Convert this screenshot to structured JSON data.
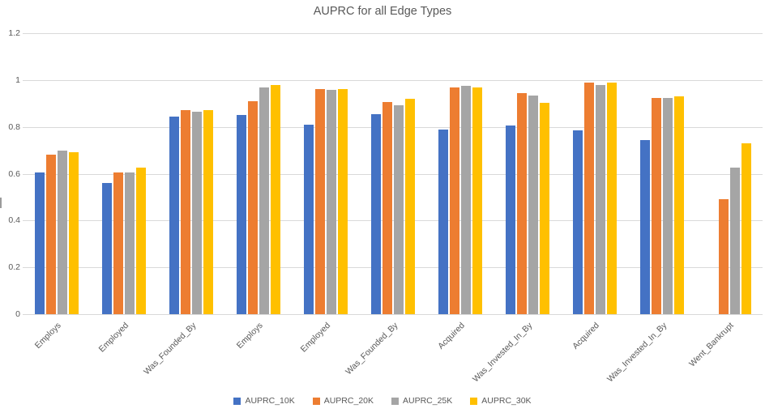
{
  "chart": {
    "title": "AUPRC for all Edge Types"
  },
  "chart_data": {
    "type": "bar",
    "title": "AUPRC for all Edge Types",
    "xlabel": "",
    "ylabel": "",
    "ylim": [
      0,
      1.2
    ],
    "grid": true,
    "legend_position": "bottom",
    "yticks": [
      0,
      0.2,
      0.4,
      0.6,
      0.8,
      1.0,
      1.2
    ],
    "ytick_labels": [
      "0",
      "0.2",
      "0.4",
      "0.6",
      "0.8",
      "1",
      "1.2"
    ],
    "categories": [
      "Employs",
      "Employed",
      "Was_Founded_By",
      "Employs",
      "Employed",
      "Was_Founded_By",
      "Acquired",
      "Was_Invested_In_By",
      "Acquired",
      "Was_Invested_In_By",
      "Went_Bankrupt"
    ],
    "series": [
      {
        "name": "AUPRC_10K",
        "color": "#4472C4",
        "values": [
          0.605,
          0.56,
          0.845,
          0.85,
          0.81,
          0.855,
          0.79,
          0.805,
          0.785,
          0.745,
          null
        ]
      },
      {
        "name": "AUPRC_20K",
        "color": "#ED7D31",
        "values": [
          0.68,
          0.605,
          0.87,
          0.91,
          0.96,
          0.905,
          0.97,
          0.945,
          0.99,
          0.925,
          0.49
        ]
      },
      {
        "name": "AUPRC_25K",
        "color": "#A5A5A5",
        "values": [
          0.7,
          0.605,
          0.865,
          0.97,
          0.958,
          0.893,
          0.975,
          0.935,
          0.98,
          0.922,
          0.625
        ]
      },
      {
        "name": "AUPRC_30K",
        "color": "#FFC000",
        "values": [
          0.693,
          0.625,
          0.87,
          0.978,
          0.96,
          0.92,
          0.97,
          0.902,
          0.988,
          0.93,
          0.73
        ]
      }
    ]
  }
}
